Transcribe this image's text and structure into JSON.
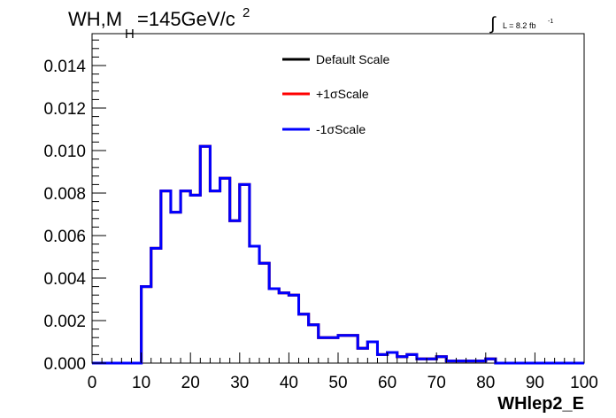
{
  "chart_data": {
    "type": "line",
    "style": "step-histogram",
    "title_parts": {
      "main": "WH,M",
      "subscript": "H",
      "rest": "=145GeV/c",
      "superscript": "2"
    },
    "lumi_label": {
      "integral_symbol": "∫",
      "text": "L = 8.2 fb",
      "superscript": "-1"
    },
    "xlabel": "WHlep2_E",
    "ylabel": "",
    "xlim": [
      0,
      100
    ],
    "ylim": [
      0,
      0.0155
    ],
    "x_ticks": [
      "0",
      "10",
      "20",
      "30",
      "40",
      "50",
      "60",
      "70",
      "80",
      "90",
      "100"
    ],
    "y_ticks": [
      "0.000",
      "0.002",
      "0.004",
      "0.006",
      "0.008",
      "0.010",
      "0.012",
      "0.014"
    ],
    "grid": false,
    "legend_position": "top-center",
    "bin_edges": [
      0,
      2,
      4,
      6,
      8,
      10,
      12,
      14,
      16,
      18,
      20,
      22,
      24,
      26,
      28,
      30,
      32,
      34,
      36,
      38,
      40,
      42,
      44,
      46,
      48,
      50,
      52,
      54,
      56,
      58,
      60,
      62,
      64,
      66,
      68,
      70,
      72,
      74,
      76,
      78,
      80,
      82,
      84,
      86,
      88,
      90,
      92,
      94,
      96,
      98,
      100
    ],
    "series": [
      {
        "name": "Default Scale",
        "color": "#000000",
        "values": [
          0,
          0,
          0,
          0,
          0,
          0.0036,
          0.0054,
          0.0081,
          0.0071,
          0.0081,
          0.0079,
          0.0102,
          0.0081,
          0.0087,
          0.0067,
          0.0084,
          0.0055,
          0.0047,
          0.0035,
          0.0033,
          0.0032,
          0.0023,
          0.0018,
          0.0012,
          0.0012,
          0.0013,
          0.0013,
          0.0007,
          0.001,
          0.0004,
          0.0005,
          0.0003,
          0.0004,
          0.0002,
          0.0002,
          0.0003,
          0.0001,
          0.0001,
          0.0001,
          0.0001,
          0.0002,
          0,
          0,
          0,
          0,
          0,
          0,
          0,
          0,
          0
        ]
      },
      {
        "name": "+1σScale",
        "color": "#ff0000",
        "values": [
          0,
          0,
          0,
          0,
          0,
          0.0036,
          0.0054,
          0.0081,
          0.0071,
          0.0081,
          0.0079,
          0.0102,
          0.0081,
          0.0087,
          0.0067,
          0.0084,
          0.0055,
          0.0047,
          0.0035,
          0.0033,
          0.0032,
          0.0023,
          0.0018,
          0.0012,
          0.0012,
          0.0013,
          0.0013,
          0.0007,
          0.001,
          0.0004,
          0.0005,
          0.0003,
          0.0004,
          0.0002,
          0.0002,
          0.0003,
          0.0001,
          0.0001,
          0.0001,
          0.0001,
          0.0002,
          0,
          0,
          0,
          0,
          0,
          0,
          0,
          0,
          0
        ]
      },
      {
        "name": "-1σScale",
        "color": "#0000ff",
        "values": [
          0,
          0,
          0,
          0,
          0,
          0.0036,
          0.0054,
          0.0081,
          0.0071,
          0.0081,
          0.0079,
          0.0102,
          0.0081,
          0.0087,
          0.0067,
          0.0084,
          0.0055,
          0.0047,
          0.0035,
          0.0033,
          0.0032,
          0.0023,
          0.0018,
          0.0012,
          0.0012,
          0.0013,
          0.0013,
          0.0007,
          0.001,
          0.0004,
          0.0005,
          0.0003,
          0.0004,
          0.0002,
          0.0002,
          0.0003,
          0.0001,
          0.0001,
          0.0001,
          0.0001,
          0.0002,
          0,
          0,
          0,
          0,
          0,
          0,
          0,
          0,
          0
        ]
      }
    ]
  }
}
